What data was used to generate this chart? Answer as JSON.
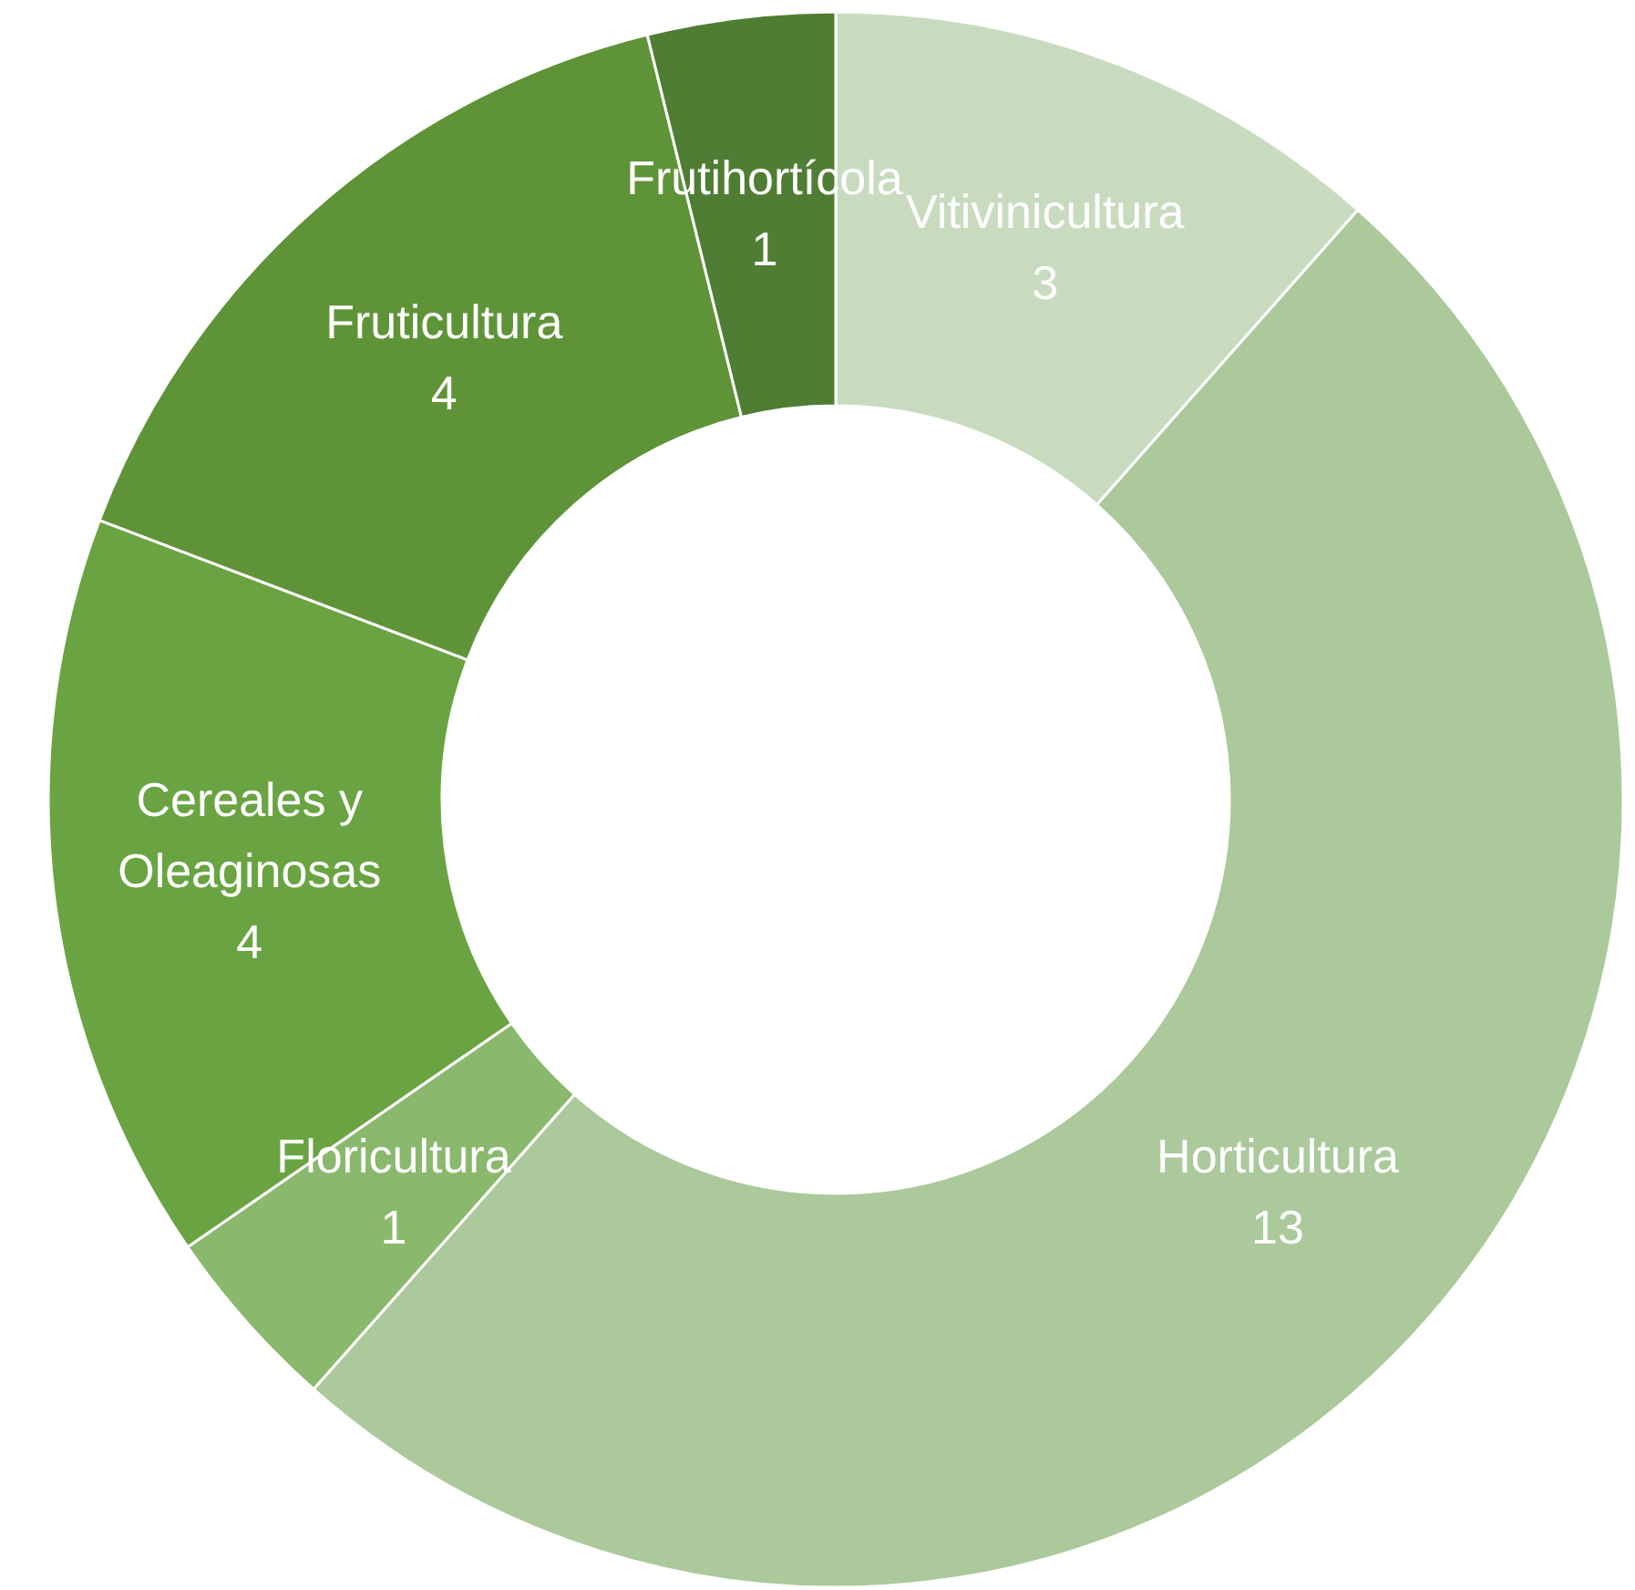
{
  "chart_data": {
    "type": "donut",
    "categories": [
      "Vitivinicultura",
      "Horticultura",
      "Floricultura",
      "Cereales y\nOleaginosas",
      "Fruticultura",
      "Frutihortícola"
    ],
    "values": [
      3,
      13,
      1,
      4,
      4,
      1
    ],
    "colors": [
      "#c9dbbf",
      "#abc99b",
      "#8ab86c",
      "#6aa442",
      "#5f9338",
      "#4e7d33"
    ],
    "data_labels": true
  }
}
